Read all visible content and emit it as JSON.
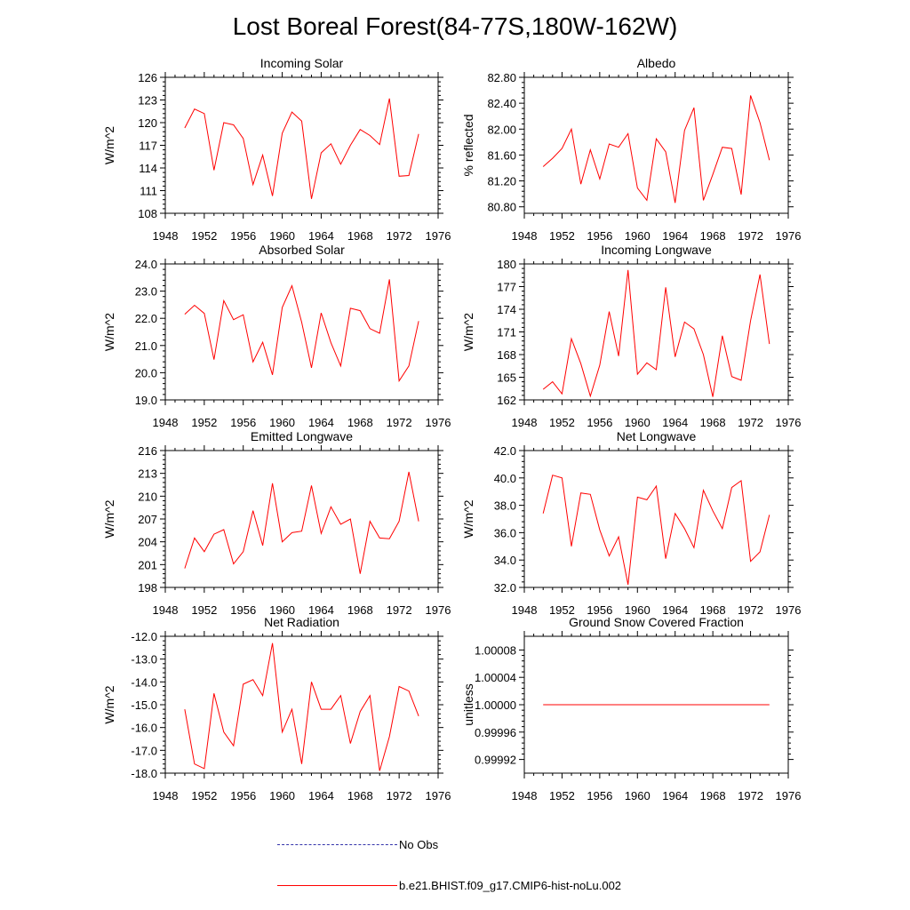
{
  "title": "Lost Boreal Forest(84-77S,180W-162W)",
  "legend": {
    "obs_label": "No Obs",
    "model_label": "b.e21.BHIST.f09_g17.CMIP6-hist-noLu.002",
    "obs_color": "#3333aa",
    "model_color": "#ff0000"
  },
  "chart_data": [
    {
      "type": "line",
      "title": "Incoming Solar",
      "ylabel": "W/m^2",
      "xlim": [
        1948,
        1976
      ],
      "ylim": [
        108,
        126
      ],
      "xticks": [
        "1948",
        "1952",
        "1956",
        "1960",
        "1964",
        "1968",
        "1972",
        "1976"
      ],
      "yticks": [
        "108",
        "111",
        "114",
        "117",
        "120",
        "123",
        "126"
      ],
      "x": [
        1950,
        1951,
        1952,
        1953,
        1954,
        1955,
        1956,
        1957,
        1958,
        1959,
        1960,
        1961,
        1962,
        1963,
        1964,
        1965,
        1966,
        1967,
        1968,
        1969,
        1970,
        1971,
        1972,
        1973,
        1974
      ],
      "series": [
        {
          "color": "#ff0000",
          "values": [
            119.3,
            121.8,
            121.2,
            113.7,
            120.0,
            119.7,
            117.9,
            111.8,
            115.7,
            110.3,
            118.6,
            121.4,
            120.2,
            109.9,
            116.0,
            117.2,
            114.5,
            117.0,
            119.1,
            118.3,
            117.1,
            123.2,
            112.9,
            113.0,
            118.5
          ]
        }
      ]
    },
    {
      "type": "line",
      "title": "Albedo",
      "ylabel": "% reflected",
      "xlim": [
        1948,
        1976
      ],
      "ylim": [
        80.7,
        82.8
      ],
      "xticks": [
        "1948",
        "1952",
        "1956",
        "1960",
        "1964",
        "1968",
        "1972",
        "1976"
      ],
      "yticks": [
        "80.80",
        "81.20",
        "81.60",
        "82.00",
        "82.40",
        "82.80"
      ],
      "x": [
        1950,
        1951,
        1952,
        1953,
        1954,
        1955,
        1956,
        1957,
        1958,
        1959,
        1960,
        1961,
        1962,
        1963,
        1964,
        1965,
        1966,
        1967,
        1968,
        1969,
        1970,
        1971,
        1972,
        1973,
        1974
      ],
      "series": [
        {
          "color": "#ff0000",
          "values": [
            81.42,
            81.55,
            81.7,
            82.0,
            81.15,
            81.68,
            81.23,
            81.77,
            81.72,
            81.93,
            81.09,
            80.9,
            81.85,
            81.65,
            80.86,
            81.98,
            82.33,
            80.9,
            81.3,
            81.72,
            81.7,
            80.99,
            82.52,
            82.1,
            81.52
          ]
        }
      ]
    },
    {
      "type": "line",
      "title": "Absorbed Solar",
      "ylabel": "W/m^2",
      "xlim": [
        1948,
        1976
      ],
      "ylim": [
        19.0,
        24.0
      ],
      "xticks": [
        "1948",
        "1952",
        "1956",
        "1960",
        "1964",
        "1968",
        "1972",
        "1976"
      ],
      "yticks": [
        "19.0",
        "20.0",
        "21.0",
        "22.0",
        "23.0",
        "24.0"
      ],
      "x": [
        1950,
        1951,
        1952,
        1953,
        1954,
        1955,
        1956,
        1957,
        1958,
        1959,
        1960,
        1961,
        1962,
        1963,
        1964,
        1965,
        1966,
        1967,
        1968,
        1969,
        1970,
        1971,
        1972,
        1973,
        1974
      ],
      "series": [
        {
          "color": "#ff0000",
          "values": [
            22.15,
            22.48,
            22.18,
            20.48,
            22.65,
            21.95,
            22.13,
            20.4,
            21.12,
            19.92,
            22.4,
            23.2,
            21.85,
            20.18,
            22.2,
            21.1,
            20.25,
            22.37,
            22.28,
            21.62,
            21.45,
            23.43,
            19.7,
            20.25,
            21.9
          ]
        }
      ]
    },
    {
      "type": "line",
      "title": "Incoming Longwave",
      "ylabel": "W/m^2",
      "xlim": [
        1948,
        1976
      ],
      "ylim": [
        162,
        180
      ],
      "xticks": [
        "1948",
        "1952",
        "1956",
        "1960",
        "1964",
        "1968",
        "1972",
        "1976"
      ],
      "yticks": [
        "162",
        "165",
        "168",
        "171",
        "174",
        "177",
        "180"
      ],
      "x": [
        1950,
        1951,
        1952,
        1953,
        1954,
        1955,
        1956,
        1957,
        1958,
        1959,
        1960,
        1961,
        1962,
        1963,
        1964,
        1965,
        1966,
        1967,
        1968,
        1969,
        1970,
        1971,
        1972,
        1973,
        1974
      ],
      "series": [
        {
          "color": "#ff0000",
          "values": [
            163.4,
            164.4,
            162.8,
            170.1,
            166.8,
            162.5,
            166.6,
            173.7,
            167.8,
            179.2,
            165.4,
            166.9,
            166.0,
            176.9,
            167.7,
            172.3,
            171.4,
            168.0,
            162.4,
            170.5,
            165.1,
            164.6,
            172.5,
            178.6,
            169.4
          ]
        }
      ]
    },
    {
      "type": "line",
      "title": "Emitted Longwave",
      "ylabel": "W/m^2",
      "xlim": [
        1948,
        1976
      ],
      "ylim": [
        198,
        216
      ],
      "xticks": [
        "1948",
        "1952",
        "1956",
        "1960",
        "1964",
        "1968",
        "1972",
        "1976"
      ],
      "yticks": [
        "198",
        "201",
        "204",
        "207",
        "210",
        "213",
        "216"
      ],
      "x": [
        1950,
        1951,
        1952,
        1953,
        1954,
        1955,
        1956,
        1957,
        1958,
        1959,
        1960,
        1961,
        1962,
        1963,
        1964,
        1965,
        1966,
        1967,
        1968,
        1969,
        1970,
        1971,
        1972,
        1973,
        1974
      ],
      "series": [
        {
          "color": "#ff0000",
          "values": [
            200.5,
            204.5,
            202.7,
            205.0,
            205.6,
            201.1,
            202.7,
            208.1,
            203.5,
            211.7,
            204.0,
            205.2,
            205.4,
            211.4,
            205.1,
            208.6,
            206.3,
            207.0,
            199.8,
            206.7,
            204.5,
            204.4,
            206.7,
            213.2,
            206.7
          ]
        }
      ]
    },
    {
      "type": "line",
      "title": "Net Longwave",
      "ylabel": "W/m^2",
      "xlim": [
        1948,
        1976
      ],
      "ylim": [
        32.0,
        42.0
      ],
      "xticks": [
        "1948",
        "1952",
        "1956",
        "1960",
        "1964",
        "1968",
        "1972",
        "1976"
      ],
      "yticks": [
        "32.0",
        "34.0",
        "36.0",
        "38.0",
        "40.0",
        "42.0"
      ],
      "x": [
        1950,
        1951,
        1952,
        1953,
        1954,
        1955,
        1956,
        1957,
        1958,
        1959,
        1960,
        1961,
        1962,
        1963,
        1964,
        1965,
        1966,
        1967,
        1968,
        1969,
        1970,
        1971,
        1972,
        1973,
        1974
      ],
      "series": [
        {
          "color": "#ff0000",
          "values": [
            37.4,
            40.2,
            40.0,
            35.0,
            38.9,
            38.8,
            36.2,
            34.3,
            35.7,
            32.2,
            38.6,
            38.4,
            39.4,
            34.1,
            37.4,
            36.3,
            34.9,
            39.1,
            37.6,
            36.3,
            39.3,
            39.8,
            33.9,
            34.6,
            37.3
          ]
        }
      ]
    },
    {
      "type": "line",
      "title": "Net Radiation",
      "ylabel": "W/m^2",
      "xlim": [
        1948,
        1976
      ],
      "ylim": [
        -18.0,
        -12.0
      ],
      "xticks": [
        "1948",
        "1952",
        "1956",
        "1960",
        "1964",
        "1968",
        "1972",
        "1976"
      ],
      "yticks": [
        "-18.0",
        "-17.0",
        "-16.0",
        "-15.0",
        "-14.0",
        "-13.0",
        "-12.0"
      ],
      "x": [
        1950,
        1951,
        1952,
        1953,
        1954,
        1955,
        1956,
        1957,
        1958,
        1959,
        1960,
        1961,
        1962,
        1963,
        1964,
        1965,
        1966,
        1967,
        1968,
        1969,
        1970,
        1971,
        1972,
        1973,
        1974
      ],
      "series": [
        {
          "color": "#ff0000",
          "values": [
            -15.2,
            -17.6,
            -17.8,
            -14.5,
            -16.2,
            -16.8,
            -14.1,
            -13.9,
            -14.6,
            -12.3,
            -16.2,
            -15.2,
            -17.6,
            -14.0,
            -15.2,
            -15.2,
            -14.6,
            -16.7,
            -15.3,
            -14.6,
            -17.9,
            -16.4,
            -14.2,
            -14.4,
            -15.5
          ]
        }
      ]
    },
    {
      "type": "line",
      "title": "Ground Snow Covered Fraction",
      "ylabel": "unitless",
      "xlim": [
        1948,
        1976
      ],
      "ylim": [
        0.9999,
        1.0001
      ],
      "xticks": [
        "1948",
        "1952",
        "1956",
        "1960",
        "1964",
        "1968",
        "1972",
        "1976"
      ],
      "yticks": [
        "0.99992",
        "0.99996",
        "1.00000",
        "1.00004",
        "1.00008"
      ],
      "ytick_values": [
        0.99992,
        0.99996,
        1.0,
        1.00004,
        1.00008
      ],
      "x": [
        1950,
        1974
      ],
      "series": [
        {
          "color": "#ff0000",
          "values": [
            1.0,
            1.0
          ]
        }
      ]
    }
  ]
}
